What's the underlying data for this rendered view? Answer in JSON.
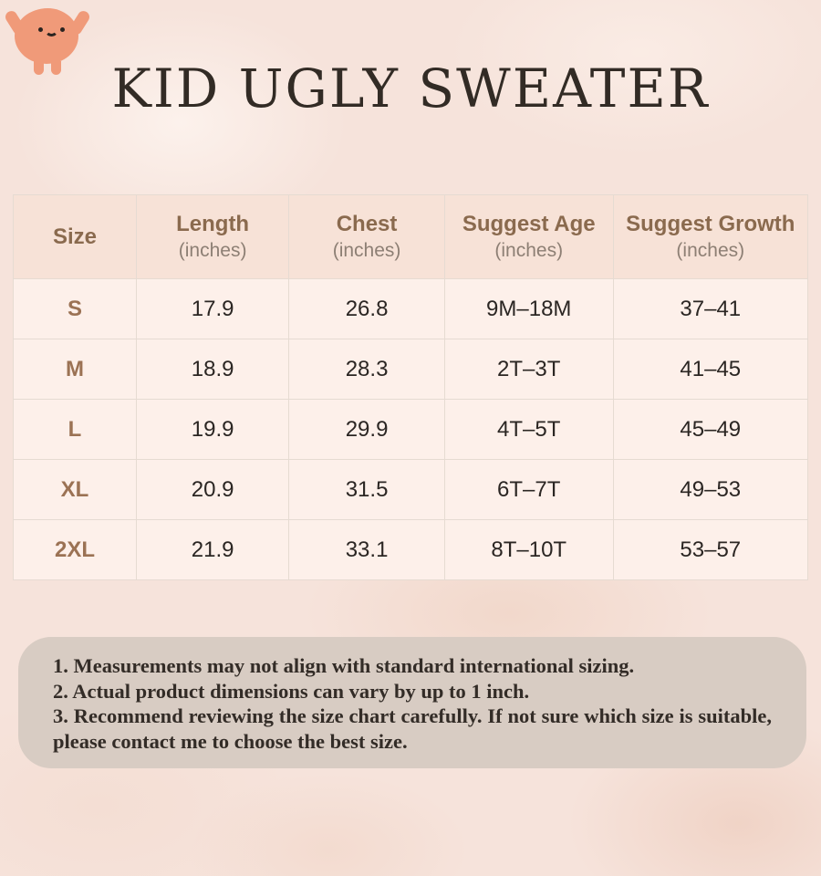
{
  "page": {
    "title": "KID UGLY SWEATER"
  },
  "mascot": {
    "description": "smiling coral blob character with raised arms",
    "body_color": "#f09a79",
    "face_color": "#2a2420"
  },
  "table": {
    "columns": [
      {
        "label": "Size",
        "sub": ""
      },
      {
        "label": "Length",
        "sub": "(inches)"
      },
      {
        "label": "Chest",
        "sub": "(inches)"
      },
      {
        "label": "Suggest Age",
        "sub": "(inches)"
      },
      {
        "label": "Suggest Growth",
        "sub": "(inches)"
      }
    ],
    "rows": [
      {
        "size": "S",
        "length": "17.9",
        "chest": "26.8",
        "age": "9M–18M",
        "growth": "37–41"
      },
      {
        "size": "M",
        "length": "18.9",
        "chest": "28.3",
        "age": "2T–3T",
        "growth": "41–45"
      },
      {
        "size": "L",
        "length": "19.9",
        "chest": "29.9",
        "age": "4T–5T",
        "growth": "45–49"
      },
      {
        "size": "XL",
        "length": "20.9",
        "chest": "31.5",
        "age": "6T–7T",
        "growth": "49–53"
      },
      {
        "size": "2XL",
        "length": "21.9",
        "chest": "33.1",
        "age": "8T–10T",
        "growth": "53–57"
      }
    ]
  },
  "notes": {
    "items": [
      "1. Measurements may not align with standard international sizing.",
      "2. Actual product dimensions can vary by up to 1 inch.",
      "3. Recommend reviewing the size chart carefully. If not sure which size is suitable, please contact me to choose the best size."
    ]
  },
  "colors": {
    "background": "#f6e3db",
    "header_bg": "#f7e2d7",
    "row_bg": "#fdf0ea",
    "border": "#e6dbd2",
    "header_text": "#8a6a4e",
    "header_sub_text": "#8d7f74",
    "size_text": "#9b7254",
    "value_text": "#2b2623",
    "title_text": "#322b25",
    "notes_bg": "#d8ccc3",
    "notes_text": "#332c27",
    "mascot_body": "#f09a79"
  }
}
